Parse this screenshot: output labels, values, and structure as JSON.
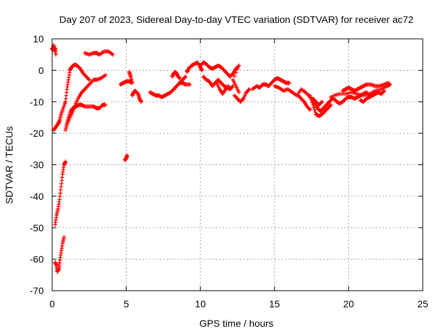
{
  "chart_data": {
    "type": "scatter",
    "title": "Day 207 of 2023, Sidereal Day-to-day VTEC variation (SDTVAR) for receiver ac72",
    "xlabel": "GPS time / hours",
    "ylabel": "SDTVAR / TECUs",
    "xlim": [
      0,
      25
    ],
    "ylim": [
      -70,
      10
    ],
    "xticks": [
      0,
      5,
      10,
      15,
      20,
      25
    ],
    "yticks": [
      10,
      0,
      -10,
      -20,
      -30,
      -40,
      -50,
      -60,
      -70
    ],
    "grid": true,
    "legend": "none",
    "marker": "plus",
    "color": "#ff0000",
    "series": [
      {
        "name": "SDTVAR",
        "segments": [
          [
            [
              0.0,
              7
            ],
            [
              0.05,
              6.5
            ],
            [
              0.1,
              8
            ],
            [
              0.15,
              6.5
            ],
            [
              0.2,
              7
            ],
            [
              0.25,
              5
            ]
          ],
          [
            [
              0.2,
              -61
            ],
            [
              0.3,
              -62
            ],
            [
              0.35,
              -64
            ],
            [
              0.45,
              -63
            ],
            [
              0.5,
              -61
            ],
            [
              0.6,
              -58
            ],
            [
              0.7,
              -55
            ],
            [
              0.8,
              -53
            ]
          ],
          [
            [
              0.2,
              -49
            ],
            [
              0.3,
              -46
            ],
            [
              0.4,
              -44
            ],
            [
              0.5,
              -41
            ],
            [
              0.6,
              -37
            ],
            [
              0.7,
              -33
            ],
            [
              0.8,
              -30
            ],
            [
              0.9,
              -29
            ]
          ],
          [
            [
              0.1,
              -19
            ],
            [
              0.25,
              -18
            ],
            [
              0.4,
              -17
            ],
            [
              0.5,
              -16
            ],
            [
              0.6,
              -14
            ],
            [
              0.75,
              -12
            ],
            [
              0.9,
              -10
            ]
          ],
          [
            [
              0.9,
              -19
            ],
            [
              1.0,
              -17
            ],
            [
              1.1,
              -15
            ],
            [
              1.25,
              -13
            ],
            [
              1.4,
              -12
            ],
            [
              1.6,
              -11.5
            ],
            [
              1.8,
              -11
            ],
            [
              2.0,
              -11
            ],
            [
              2.2,
              -11.5
            ],
            [
              2.5,
              -11.5
            ],
            [
              2.8,
              -11.5
            ],
            [
              3.0,
              -12
            ],
            [
              3.2,
              -12
            ],
            [
              3.4,
              -11
            ],
            [
              3.6,
              -11
            ]
          ],
          [
            [
              1.0,
              -17
            ],
            [
              1.2,
              -15
            ],
            [
              1.4,
              -13
            ],
            [
              1.6,
              -10.5
            ],
            [
              1.8,
              -8.5
            ],
            [
              2.0,
              -7
            ],
            [
              2.2,
              -6
            ],
            [
              2.5,
              -4.5
            ],
            [
              2.8,
              -3
            ],
            [
              3.0,
              -3
            ],
            [
              3.3,
              -2.5
            ],
            [
              3.6,
              -1.5
            ]
          ],
          [
            [
              0.9,
              -10
            ],
            [
              1.0,
              -6
            ],
            [
              1.1,
              -3
            ],
            [
              1.2,
              0
            ],
            [
              1.3,
              1
            ],
            [
              1.5,
              1.8
            ],
            [
              1.7,
              1.5
            ],
            [
              1.9,
              0.5
            ],
            [
              2.1,
              -1
            ],
            [
              2.3,
              -2
            ],
            [
              2.5,
              -3
            ]
          ],
          [
            [
              2.2,
              5.5
            ],
            [
              2.5,
              5
            ],
            [
              2.8,
              5.5
            ],
            [
              3.0,
              5.5
            ],
            [
              3.2,
              5
            ],
            [
              3.5,
              6
            ],
            [
              3.8,
              6
            ],
            [
              4.1,
              5
            ]
          ],
          [
            [
              4.6,
              -4.5
            ],
            [
              4.8,
              -4
            ],
            [
              5.0,
              -3.5
            ],
            [
              5.2,
              -3.5
            ],
            [
              5.4,
              -4
            ],
            [
              5.3,
              -2
            ],
            [
              5.2,
              -0.5
            ]
          ],
          [
            [
              4.9,
              -28.5
            ],
            [
              5.0,
              -28
            ],
            [
              5.05,
              -27
            ]
          ],
          [
            [
              5.4,
              -8
            ],
            [
              5.5,
              -7
            ],
            [
              5.6,
              -6.5
            ],
            [
              5.8,
              -7.5
            ],
            [
              5.9,
              -9
            ],
            [
              6.0,
              -10
            ]
          ],
          [
            [
              6.6,
              -7
            ],
            [
              6.8,
              -7.5
            ],
            [
              7.0,
              -8
            ],
            [
              7.2,
              -8
            ],
            [
              7.4,
              -8.5
            ],
            [
              7.6,
              -8
            ],
            [
              7.8,
              -7.5
            ],
            [
              8.0,
              -7
            ],
            [
              8.2,
              -6
            ],
            [
              8.4,
              -5
            ],
            [
              8.6,
              -4
            ],
            [
              8.8,
              -3
            ],
            [
              9.0,
              -2
            ]
          ],
          [
            [
              8.1,
              -2
            ],
            [
              8.2,
              -1
            ],
            [
              8.3,
              -0.5
            ],
            [
              8.4,
              -1
            ],
            [
              8.5,
              -2
            ],
            [
              8.6,
              -2.5
            ]
          ],
          [
            [
              8.6,
              -4
            ],
            [
              8.8,
              -4
            ],
            [
              9.0,
              -4.5
            ],
            [
              9.3,
              -4.5
            ]
          ],
          [
            [
              9.1,
              -0.5
            ],
            [
              9.2,
              0.5
            ],
            [
              9.4,
              1.5
            ],
            [
              9.6,
              2
            ],
            [
              9.8,
              2.5
            ],
            [
              10.0,
              1
            ],
            [
              10.1,
              0
            ]
          ],
          [
            [
              10.0,
              1.5
            ],
            [
              10.2,
              2.5
            ],
            [
              10.4,
              2
            ],
            [
              10.6,
              1
            ],
            [
              10.8,
              0.5
            ],
            [
              11.0,
              1
            ],
            [
              11.2,
              1.5
            ],
            [
              11.4,
              1
            ],
            [
              11.6,
              0
            ],
            [
              11.8,
              -1
            ],
            [
              12.0,
              -2
            ],
            [
              12.2,
              -1
            ],
            [
              12.4,
              0.5
            ],
            [
              12.6,
              1.5
            ],
            [
              12.2,
              -3
            ],
            [
              12.4,
              -5
            ],
            [
              12.6,
              -7
            ]
          ],
          [
            [
              10.2,
              -2
            ],
            [
              10.4,
              -3
            ],
            [
              10.6,
              -3.5
            ],
            [
              10.8,
              -5
            ],
            [
              11.0,
              -4
            ],
            [
              11.2,
              -3
            ],
            [
              11.4,
              -4
            ],
            [
              11.6,
              -5
            ],
            [
              11.8,
              -5.5
            ],
            [
              12.0,
              -6
            ],
            [
              12.2,
              -5
            ]
          ],
          [
            [
              11.1,
              -4
            ],
            [
              11.3,
              -6
            ],
            [
              11.5,
              -7.5
            ],
            [
              11.7,
              -6
            ],
            [
              11.9,
              -5
            ]
          ],
          [
            [
              12.3,
              -8
            ],
            [
              12.5,
              -9
            ],
            [
              12.7,
              -10
            ],
            [
              12.9,
              -9
            ],
            [
              13.1,
              -7
            ],
            [
              13.3,
              -6
            ]
          ],
          [
            [
              13.5,
              -6
            ],
            [
              13.8,
              -5
            ],
            [
              14.0,
              -5.5
            ],
            [
              14.2,
              -4.5
            ],
            [
              14.4,
              -4.5
            ],
            [
              14.6,
              -5
            ],
            [
              14.8,
              -4
            ],
            [
              15.0,
              -3
            ],
            [
              15.2,
              -2.5
            ],
            [
              15.4,
              -3
            ],
            [
              15.6,
              -3.5
            ],
            [
              15.8,
              -4
            ],
            [
              16.0,
              -4
            ]
          ],
          [
            [
              15.0,
              -5
            ],
            [
              15.3,
              -5.5
            ],
            [
              15.6,
              -6.5
            ],
            [
              15.9,
              -6
            ],
            [
              16.2,
              -7
            ],
            [
              16.5,
              -8
            ],
            [
              16.8,
              -6
            ],
            [
              17.1,
              -7
            ],
            [
              17.4,
              -8.5
            ],
            [
              17.7,
              -10.5
            ],
            [
              17.9,
              -12
            ],
            [
              18.1,
              -13
            ],
            [
              18.3,
              -12
            ],
            [
              18.5,
              -11
            ],
            [
              18.7,
              -10
            ],
            [
              18.9,
              -9
            ]
          ],
          [
            [
              16.6,
              -8
            ],
            [
              16.8,
              -9
            ],
            [
              17.0,
              -10
            ],
            [
              17.2,
              -11.5
            ],
            [
              17.4,
              -12.5
            ]
          ],
          [
            [
              17.4,
              -8
            ],
            [
              17.6,
              -11
            ],
            [
              17.8,
              -14
            ],
            [
              18.0,
              -14.5
            ],
            [
              18.2,
              -14
            ],
            [
              18.4,
              -13
            ],
            [
              18.6,
              -12
            ],
            [
              18.8,
              -11
            ]
          ],
          [
            [
              17.6,
              -9
            ],
            [
              17.8,
              -10
            ],
            [
              18.0,
              -11
            ],
            [
              18.2,
              -10
            ]
          ],
          [
            [
              18.8,
              -8.5
            ],
            [
              19.0,
              -9
            ],
            [
              19.2,
              -10
            ],
            [
              19.4,
              -10.5
            ],
            [
              19.6,
              -10
            ],
            [
              19.8,
              -9
            ],
            [
              20.0,
              -8.5
            ],
            [
              20.2,
              -8.5
            ],
            [
              20.4,
              -9
            ],
            [
              20.6,
              -8.5
            ],
            [
              20.8,
              -8
            ],
            [
              21.0,
              -7.5
            ],
            [
              21.2,
              -7
            ],
            [
              21.4,
              -8
            ]
          ],
          [
            [
              19.6,
              -6.5
            ],
            [
              19.8,
              -6
            ],
            [
              20.0,
              -5.5
            ],
            [
              20.2,
              -6
            ],
            [
              20.4,
              -6.5
            ],
            [
              20.6,
              -6
            ],
            [
              20.8,
              -5.5
            ],
            [
              21.0,
              -5
            ],
            [
              21.2,
              -4.5
            ],
            [
              21.5,
              -4.5
            ],
            [
              21.8,
              -5
            ],
            [
              22.1,
              -5
            ],
            [
              22.4,
              -4.5
            ],
            [
              22.7,
              -4
            ]
          ],
          [
            [
              19.0,
              -8
            ],
            [
              19.4,
              -7.5
            ],
            [
              19.8,
              -7.5
            ],
            [
              20.2,
              -7
            ],
            [
              20.6,
              -7.5
            ],
            [
              21.0,
              -8
            ],
            [
              21.4,
              -7.5
            ],
            [
              21.8,
              -6.5
            ],
            [
              22.2,
              -6
            ],
            [
              22.6,
              -5
            ],
            [
              22.8,
              -4.5
            ]
          ],
          [
            [
              20.8,
              -9.5
            ],
            [
              21.0,
              -10
            ],
            [
              21.2,
              -9
            ],
            [
              21.4,
              -8.5
            ],
            [
              21.6,
              -8
            ],
            [
              21.8,
              -7.5
            ],
            [
              22.0,
              -7
            ],
            [
              22.2,
              -7.5
            ],
            [
              22.4,
              -6.5
            ]
          ]
        ]
      }
    ]
  }
}
